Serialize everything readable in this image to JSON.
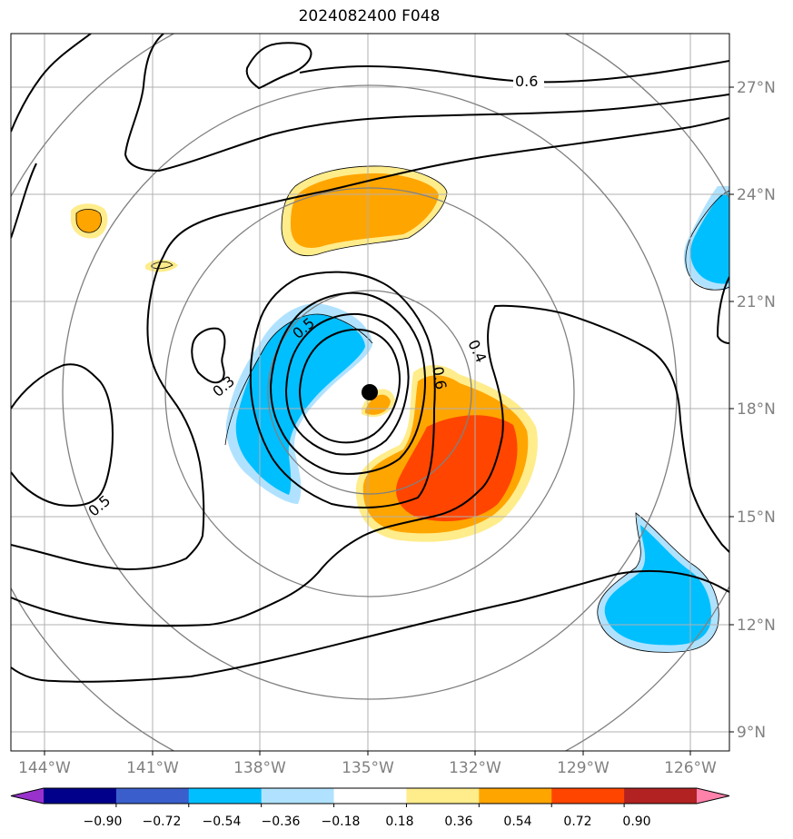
{
  "title": "2024082400 F048",
  "map": {
    "lat_ticks": [
      "27°N",
      "24°N",
      "21°N",
      "18°N",
      "15°N",
      "12°N",
      "9°N"
    ],
    "lon_ticks": [
      "144°W",
      "141°W",
      "138°W",
      "135°W",
      "132°W",
      "129°W",
      "126°W"
    ],
    "storm_center_color": "#000000",
    "range_ring_color": "#808080",
    "grid_color": "#b0b0b0"
  },
  "contours": {
    "labels": [
      "0.6",
      "0.5",
      "0.3",
      "0.5",
      "0.4",
      "0.6"
    ]
  },
  "colorbar": {
    "ticks": [
      "−0.90",
      "−0.72",
      "−0.54",
      "−0.36",
      "−0.18",
      "0.18",
      "0.36",
      "0.54",
      "0.72",
      "0.90"
    ],
    "colors": [
      "#9932cc",
      "#00008b",
      "#3a5fcd",
      "#00bfff",
      "#b0e2ff",
      "#ffffff",
      "#ffec8b",
      "#ffa500",
      "#ff4500",
      "#b22222",
      "#ff82ab"
    ]
  }
}
